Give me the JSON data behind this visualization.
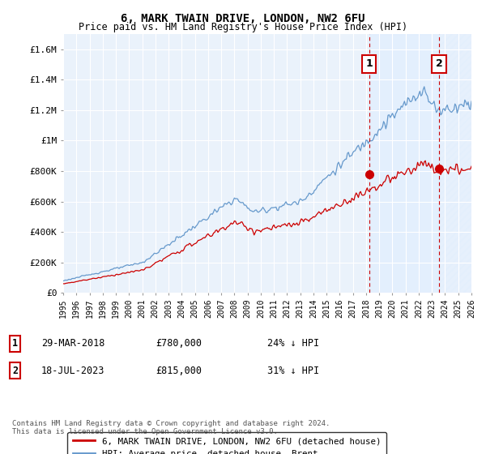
{
  "title": "6, MARK TWAIN DRIVE, LONDON, NW2 6FU",
  "subtitle": "Price paid vs. HM Land Registry's House Price Index (HPI)",
  "xlim": [
    1995,
    2026
  ],
  "ylim": [
    0,
    1700000
  ],
  "yticks": [
    0,
    200000,
    400000,
    600000,
    800000,
    1000000,
    1200000,
    1400000,
    1600000
  ],
  "ytick_labels": [
    "£0",
    "£200K",
    "£400K",
    "£600K",
    "£800K",
    "£1M",
    "£1.2M",
    "£1.4M",
    "£1.6M"
  ],
  "xticks": [
    1995,
    1996,
    1997,
    1998,
    1999,
    2000,
    2001,
    2002,
    2003,
    2004,
    2005,
    2006,
    2007,
    2008,
    2009,
    2010,
    2011,
    2012,
    2013,
    2014,
    2015,
    2016,
    2017,
    2018,
    2019,
    2020,
    2021,
    2022,
    2023,
    2024,
    2025,
    2026
  ],
  "sale1_x": 2018.23,
  "sale1_y": 780000,
  "sale1_label": "1",
  "sale2_x": 2023.54,
  "sale2_y": 815000,
  "sale2_label": "2",
  "sale1_color": "#cc0000",
  "sale2_color": "#cc0000",
  "vline_color": "#cc0000",
  "hpi_line_color": "#6699cc",
  "price_line_color": "#cc0000",
  "shade_between_color": "#ddeeff",
  "shade_after_color": "#ddeeff",
  "legend_line1": "6, MARK TWAIN DRIVE, LONDON, NW2 6FU (detached house)",
  "legend_line2": "HPI: Average price, detached house, Brent",
  "info1_date": "29-MAR-2018",
  "info1_price": "£780,000",
  "info1_hpi": "24% ↓ HPI",
  "info2_date": "18-JUL-2023",
  "info2_price": "£815,000",
  "info2_hpi": "31% ↓ HPI",
  "footer": "Contains HM Land Registry data © Crown copyright and database right 2024.\nThis data is licensed under the Open Government Licence v3.0.",
  "bg_color": "#ffffff",
  "plot_bg_color": "#eaf2fb",
  "grid_color": "#ffffff"
}
